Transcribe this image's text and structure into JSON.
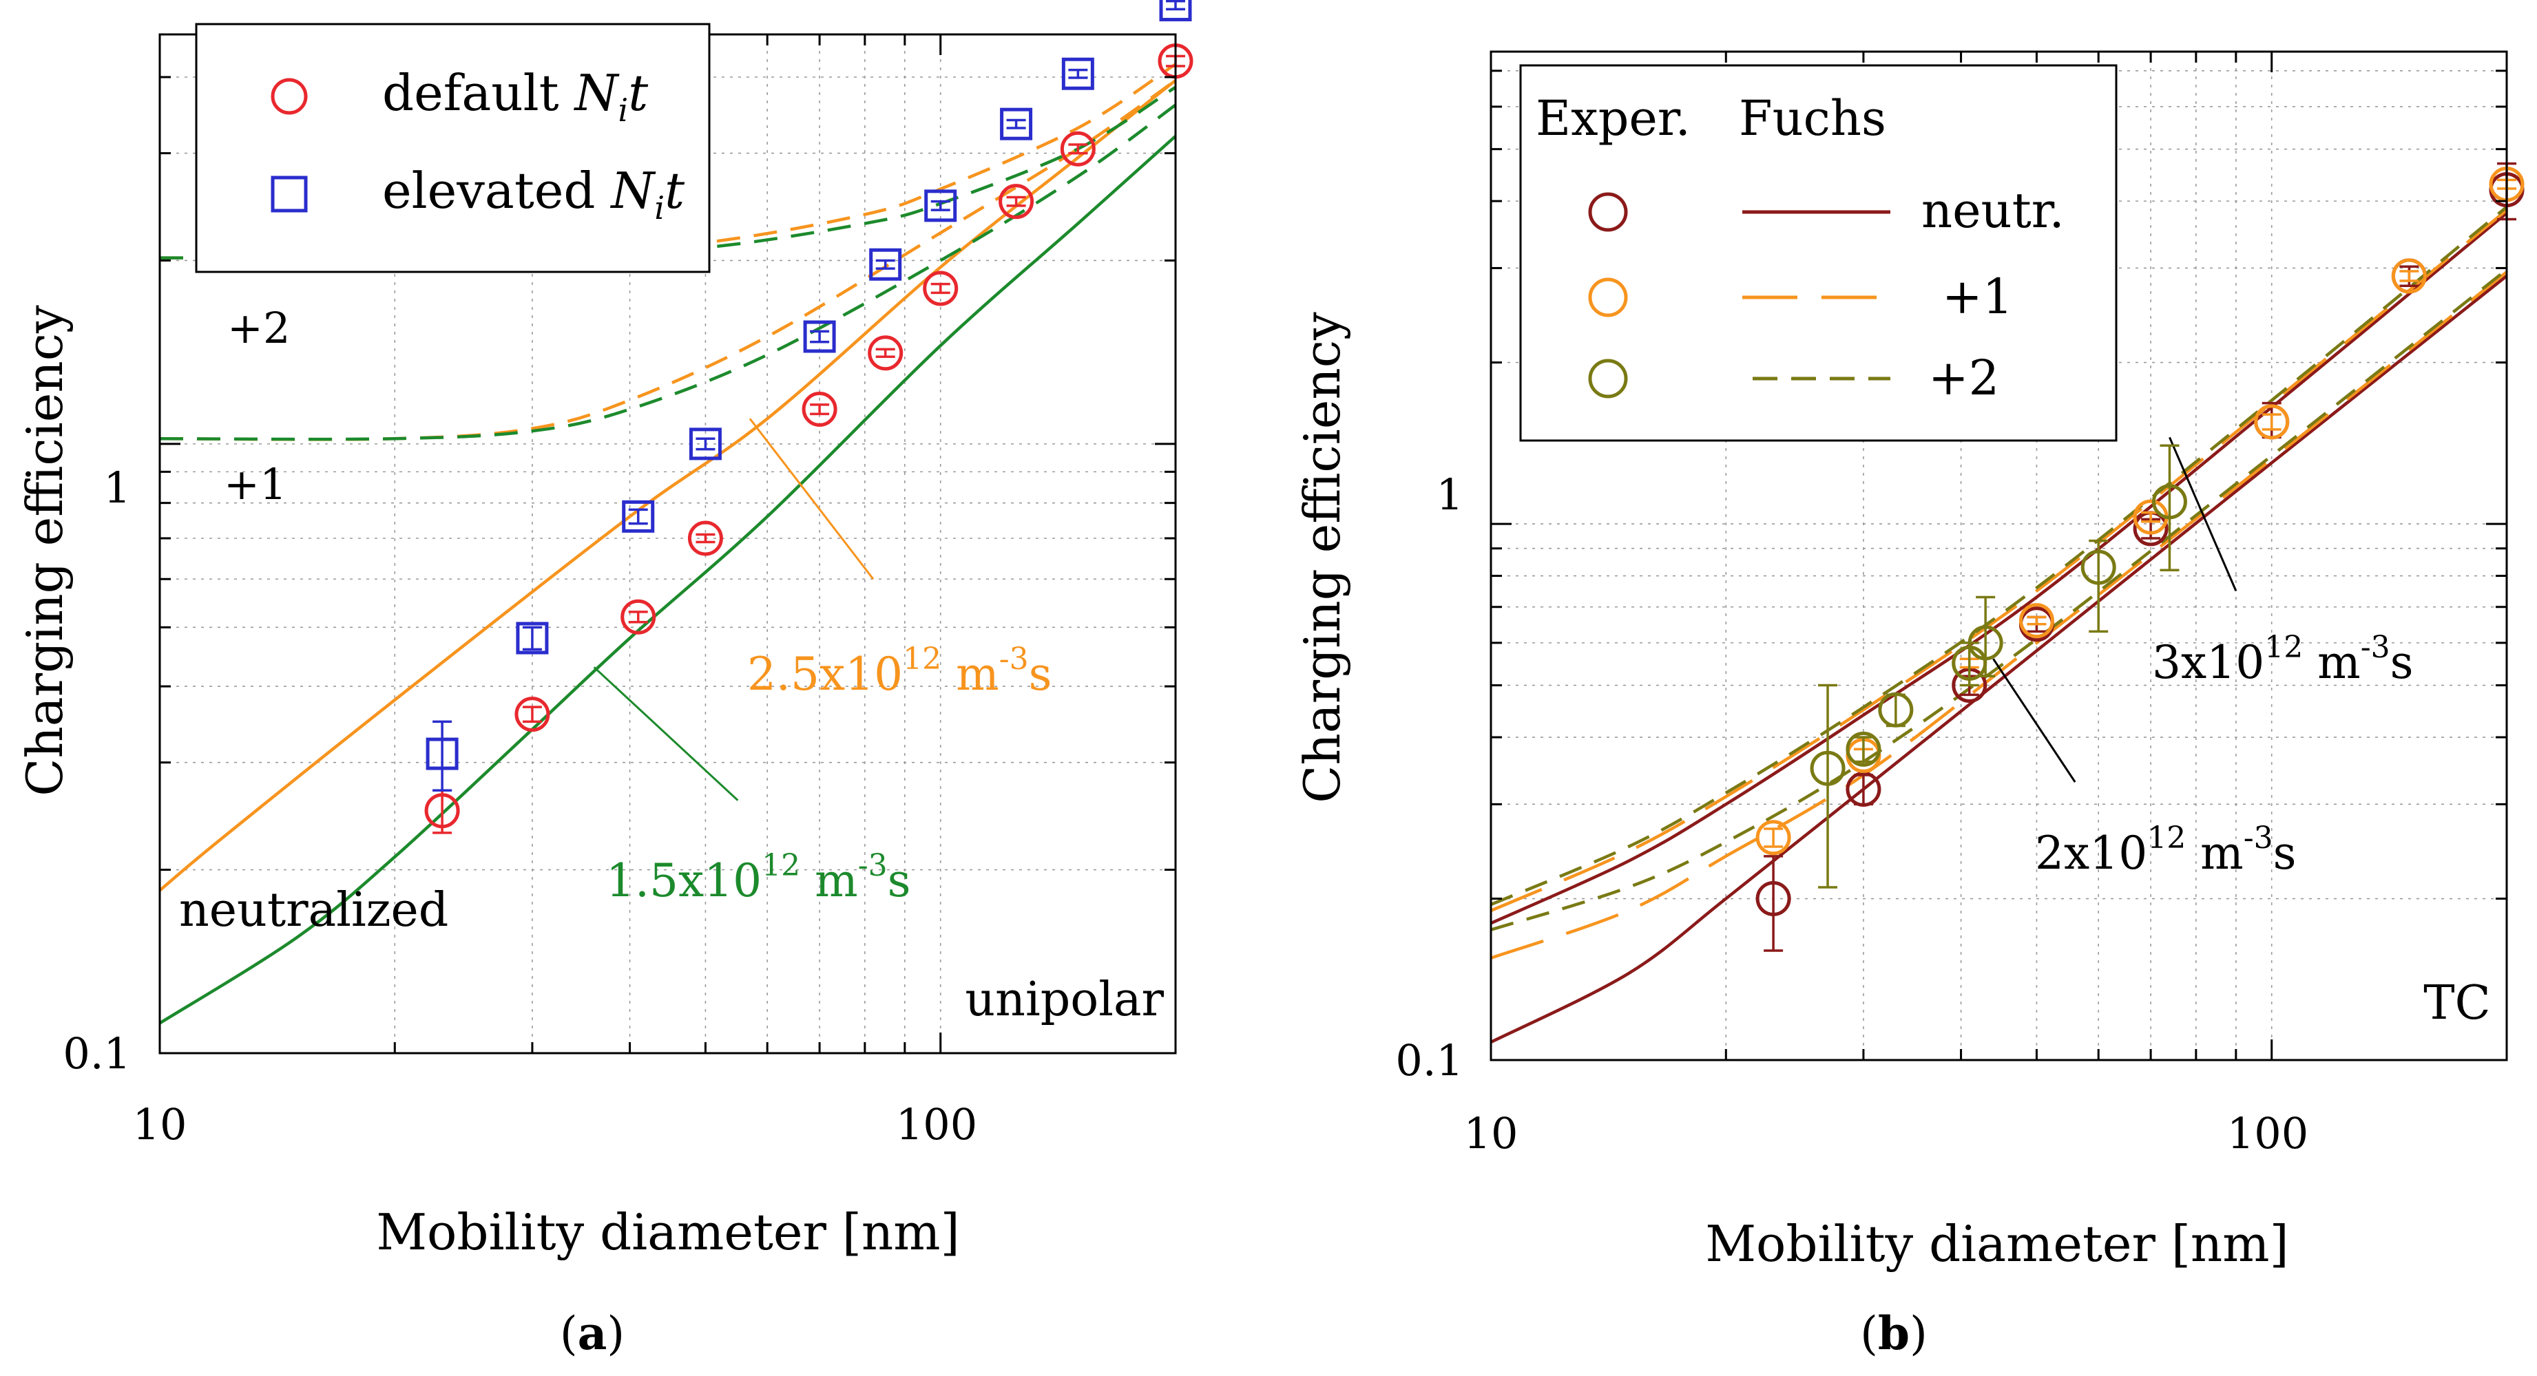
{
  "figure": {
    "panel_a_label_open": "(",
    "panel_a_label_letter": "a",
    "panel_a_label_close": ")",
    "panel_b_label_open": "(",
    "panel_b_label_letter": "b",
    "panel_b_label_close": ")"
  },
  "colors": {
    "red": "#e8282e",
    "blue": "#2a2dcc",
    "orange": "#f7941e",
    "green": "#1c8a2c",
    "darkred": "#8b1a1a",
    "olive": "#7a7a14",
    "grid": "#9a9a9a",
    "axis": "#000000"
  },
  "chart_data": [
    {
      "id": "a",
      "type": "scatter",
      "xscale": "log",
      "yscale": "log",
      "xlim": [
        10,
        200
      ],
      "ylim": [
        0.1,
        4.7
      ],
      "xlabel": "Mobility diameter [nm]",
      "ylabel": "Charging efficiency",
      "xticks": [
        {
          "value": 10,
          "label": "10"
        },
        {
          "value": 100,
          "label": "100"
        }
      ],
      "yticks": [
        {
          "value": 0.1,
          "label": "0.1"
        },
        {
          "value": 1,
          "label": "1"
        }
      ],
      "grid": true,
      "legend": {
        "position": "top-left",
        "entries": [
          {
            "marker": "circle",
            "color": "red",
            "label": "default ",
            "label_italic": "N",
            "label_sub": "i",
            "label_t": "t"
          },
          {
            "marker": "square",
            "color": "blue",
            "label": "elevated ",
            "label_italic": "N",
            "label_sub": "i",
            "label_t": "t"
          }
        ]
      },
      "annotations": {
        "corner": "unipolar",
        "plus2": "+2",
        "plus1": "+1",
        "neutralized": "neutralized",
        "orange_label": "2.5x10",
        "orange_exp": "12",
        "orange_unit": " m",
        "orange_unit_exp": "-3",
        "orange_unit_tail": "s",
        "green_label": "1.5x10",
        "green_exp": "12",
        "green_unit": " m",
        "green_unit_exp": "-3",
        "green_unit_tail": "s"
      },
      "series": [
        {
          "name": "default Nit",
          "kind": "points",
          "marker": "circle",
          "color": "red",
          "x": [
            23,
            30,
            41,
            50,
            70,
            85,
            100,
            125,
            150,
            200
          ],
          "y": [
            0.25,
            0.36,
            0.52,
            0.7,
            1.14,
            1.41,
            1.8,
            2.5,
            3.05,
            4.25
          ],
          "err": [
            0.02,
            0.01,
            0.01,
            0.01,
            0.02,
            0.02,
            0.03,
            0.04,
            0.05,
            0.08
          ]
        },
        {
          "name": "elevated Nit",
          "kind": "points",
          "marker": "square",
          "color": "blue",
          "x": [
            23,
            30,
            41,
            50,
            70,
            85,
            100,
            125,
            150,
            200
          ],
          "y": [
            0.31,
            0.48,
            0.76,
            1.0,
            1.5,
            1.97,
            2.46,
            3.35,
            4.05,
            5.25
          ],
          "err": [
            0.04,
            0.02,
            0.02,
            0.02,
            0.03,
            0.03,
            0.04,
            0.05,
            0.06,
            0.08
          ]
        },
        {
          "name": "orange solid neutralized",
          "kind": "line",
          "style": "solid",
          "color": "orange",
          "x": [
            10,
            12,
            20,
            40,
            60,
            100,
            150,
            200
          ],
          "y": [
            0.185,
            0.225,
            0.38,
            0.76,
            1.1,
            1.95,
            2.95,
            3.95
          ]
        },
        {
          "name": "green solid neutralized",
          "kind": "line",
          "style": "solid",
          "color": "green",
          "x": [
            10,
            15,
            20,
            30,
            40,
            60,
            100,
            150,
            200
          ],
          "y": [
            0.112,
            0.155,
            0.21,
            0.34,
            0.48,
            0.76,
            1.45,
            2.3,
            3.2
          ]
        },
        {
          "name": "orange +1",
          "kind": "line",
          "style": "dashed",
          "color": "orange",
          "x": [
            10,
            20,
            30,
            40,
            60,
            100,
            150,
            200
          ],
          "y": [
            1.02,
            1.02,
            1.06,
            1.18,
            1.5,
            2.22,
            3.05,
            3.95
          ]
        },
        {
          "name": "green +1",
          "kind": "line",
          "style": "dashed",
          "color": "green",
          "x": [
            10,
            20,
            30,
            40,
            60,
            100,
            150,
            200
          ],
          "y": [
            1.02,
            1.02,
            1.05,
            1.14,
            1.4,
            2.0,
            2.75,
            3.6
          ]
        },
        {
          "name": "orange +2",
          "kind": "line",
          "style": "dashed",
          "color": "orange",
          "x": [
            10,
            20,
            30,
            50,
            80,
            100,
            150,
            200
          ],
          "y": [
            2.02,
            2.02,
            2.04,
            2.14,
            2.38,
            2.62,
            3.3,
            4.2
          ]
        },
        {
          "name": "green +2",
          "kind": "line",
          "style": "dashed",
          "color": "green",
          "x": [
            10,
            20,
            30,
            50,
            80,
            100,
            150,
            200
          ],
          "y": [
            2.02,
            2.02,
            2.03,
            2.1,
            2.3,
            2.48,
            3.05,
            3.85
          ]
        }
      ],
      "pointers": [
        {
          "color": "orange",
          "from": [
            57,
            1.1
          ],
          "to": [
            82,
            0.6
          ]
        },
        {
          "color": "green",
          "from": [
            36,
            0.43
          ],
          "to": [
            55,
            0.26
          ]
        }
      ]
    },
    {
      "id": "b",
      "type": "scatter",
      "xscale": "log",
      "yscale": "log",
      "xlim": [
        10,
        200
      ],
      "ylim": [
        0.1,
        7.6
      ],
      "xlabel": "Mobility diameter [nm]",
      "ylabel": "Charging efficiency",
      "xticks": [
        {
          "value": 10,
          "label": "10"
        },
        {
          "value": 100,
          "label": "100"
        }
      ],
      "yticks": [
        {
          "value": 0.1,
          "label": "0.1"
        },
        {
          "value": 1,
          "label": "1"
        }
      ],
      "grid": true,
      "legend": {
        "position": "top-left",
        "header_exp": "Exper.",
        "header_fuchs": "Fuchs",
        "entries": [
          {
            "color": "darkred",
            "style": "solid",
            "label": "neutr."
          },
          {
            "color": "orange",
            "style": "long-dash",
            "label": "+1"
          },
          {
            "color": "olive",
            "style": "dashed",
            "label": "+2"
          }
        ]
      },
      "annotations": {
        "corner": "TC",
        "ann3_label": "3x10",
        "ann3_exp": "12",
        "ann3_unit": " m",
        "ann3_unit_exp": "-3",
        "ann3_unit_tail": "s",
        "ann2_label": "2x10",
        "ann2_exp": "12",
        "ann2_unit": " m",
        "ann2_unit_exp": "-3",
        "ann2_unit_tail": "s"
      },
      "series": [
        {
          "name": "neutr. 2e12",
          "kind": "line",
          "style": "solid",
          "color": "darkred",
          "x": [
            10,
            15,
            20,
            30,
            50,
            100,
            200
          ],
          "y": [
            0.108,
            0.145,
            0.2,
            0.32,
            0.58,
            1.3,
            2.9
          ]
        },
        {
          "name": "neutr. 3e12",
          "kind": "line",
          "style": "solid",
          "color": "darkred",
          "x": [
            10,
            15,
            20,
            30,
            50,
            100,
            200
          ],
          "y": [
            0.18,
            0.235,
            0.3,
            0.44,
            0.73,
            1.65,
            3.8
          ]
        },
        {
          "name": "+1 2e12",
          "kind": "line",
          "style": "long-dash",
          "color": "orange",
          "x": [
            10,
            15,
            20,
            30,
            50,
            100,
            200
          ],
          "y": [
            0.155,
            0.19,
            0.24,
            0.34,
            0.6,
            1.32,
            2.95
          ]
        },
        {
          "name": "+1 3e12",
          "kind": "line",
          "style": "long-dash",
          "color": "orange",
          "x": [
            10,
            15,
            20,
            30,
            50,
            100,
            200
          ],
          "y": [
            0.19,
            0.245,
            0.31,
            0.45,
            0.75,
            1.68,
            3.85
          ]
        },
        {
          "name": "+2 2e12",
          "kind": "line",
          "style": "dashed",
          "color": "olive",
          "x": [
            10,
            15,
            20,
            30,
            50,
            100,
            200
          ],
          "y": [
            0.175,
            0.21,
            0.255,
            0.36,
            0.61,
            1.34,
            2.98
          ]
        },
        {
          "name": "+2 3e12",
          "kind": "line",
          "style": "dashed",
          "color": "olive",
          "x": [
            10,
            15,
            20,
            30,
            50,
            100,
            200
          ],
          "y": [
            0.195,
            0.25,
            0.315,
            0.455,
            0.76,
            1.7,
            3.9
          ]
        },
        {
          "name": "Exper. neutr.",
          "kind": "points",
          "marker": "circle",
          "color": "darkred",
          "x": [
            23,
            30,
            41,
            50,
            70,
            100,
            150,
            200
          ],
          "y": [
            0.2,
            0.32,
            0.5,
            0.65,
            0.98,
            1.55,
            2.9,
            4.2
          ],
          "err_lo": [
            0.04,
            0.02,
            0.02,
            0.02,
            0.04,
            0.1,
            0.12,
            0.5
          ],
          "err_hi": [
            0.04,
            0.02,
            0.02,
            0.02,
            0.04,
            0.13,
            0.12,
            0.5
          ]
        },
        {
          "name": "Exper. +1",
          "kind": "points",
          "marker": "circle",
          "color": "orange",
          "x": [
            23,
            30,
            41,
            50,
            70,
            100,
            150,
            200
          ],
          "y": [
            0.26,
            0.37,
            0.55,
            0.66,
            1.03,
            1.55,
            2.9,
            4.3
          ],
          "err_lo": [
            0.01,
            0.01,
            0.01,
            0.01,
            0.02,
            0.05,
            0.06,
            0.08
          ],
          "err_hi": [
            0.01,
            0.01,
            0.01,
            0.01,
            0.02,
            0.05,
            0.06,
            0.08
          ]
        },
        {
          "name": "Exper. +2",
          "kind": "points",
          "marker": "circle",
          "color": "olive",
          "x": [
            27,
            30,
            33,
            41,
            43,
            60,
            74
          ],
          "y": [
            0.35,
            0.38,
            0.45,
            0.55,
            0.6,
            0.83,
            1.1
          ],
          "err_lo": [
            0.14,
            0.02,
            0.03,
            0.05,
            0.08,
            0.2,
            0.28
          ],
          "err_hi": [
            0.15,
            0.02,
            0.03,
            0.05,
            0.13,
            0.1,
            0.3
          ]
        }
      ],
      "pointers": [
        {
          "color": "axis",
          "from": [
            74,
            1.45
          ],
          "to": [
            90,
            0.75
          ]
        },
        {
          "color": "axis",
          "from": [
            44,
            0.56
          ],
          "to": [
            56,
            0.33
          ]
        }
      ]
    }
  ]
}
